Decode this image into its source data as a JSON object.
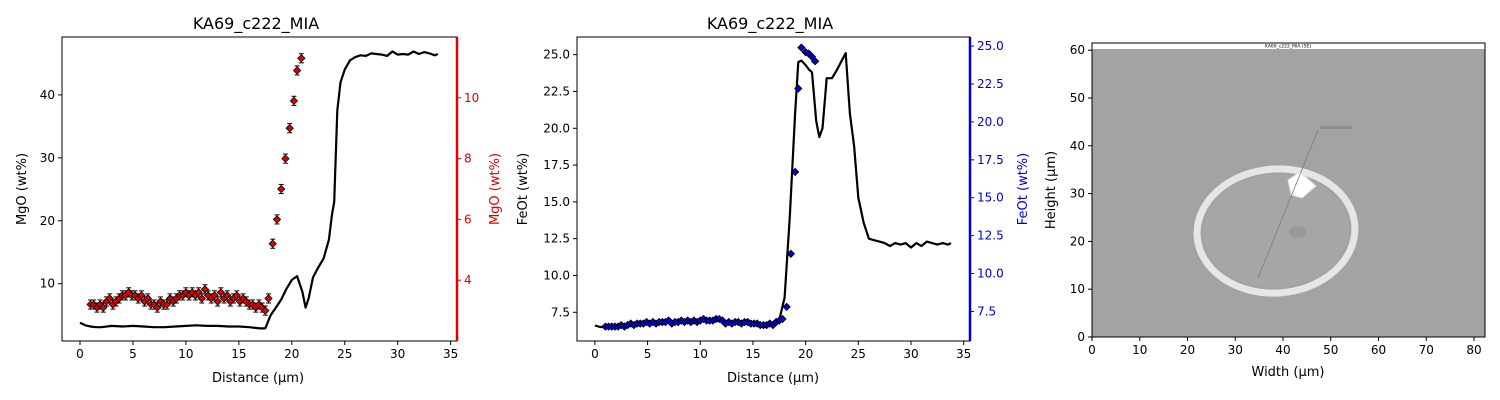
{
  "chart_data": [
    {
      "type": "line",
      "title": "KA69_c222_MIA",
      "xlabel": "Distance (µm)",
      "ylabel": "MgO (wt%)",
      "y2label": "MgO (wt%)",
      "xlim": [
        -1.7,
        35.6
      ],
      "ylim": [
        0.9,
        49.2
      ],
      "y2lim": [
        2.0,
        12.0
      ],
      "xticks": [
        "0",
        "5",
        "10",
        "15",
        "20",
        "25",
        "30",
        "35"
      ],
      "yticks": [
        "10",
        "20",
        "30",
        "40"
      ],
      "y2ticks": [
        "4",
        "6",
        "8",
        "10"
      ],
      "colors": {
        "line": "#000000",
        "points": "#e00000",
        "right_axis": "#e00000"
      },
      "series": [
        {
          "axis": "left",
          "style": "line",
          "x": [
            0,
            0.5,
            1,
            1.5,
            2,
            3,
            4,
            5,
            6,
            7,
            8,
            9,
            10,
            11,
            12,
            13,
            14,
            15,
            16,
            17,
            17.5,
            18,
            18.5,
            19,
            19.5,
            20,
            20.5,
            21,
            21.3,
            21.6,
            22,
            22.5,
            23,
            23.5,
            23.8,
            24,
            24.3,
            24.6,
            25,
            25.5,
            26,
            26.5,
            27,
            27.5,
            28,
            28.5,
            29,
            29.5,
            30,
            30.5,
            31,
            31.5,
            32,
            32.5,
            33,
            33.5,
            33.8
          ],
          "y": [
            3.8,
            3.4,
            3.2,
            3.1,
            3.1,
            3.3,
            3.2,
            3.3,
            3.2,
            3.1,
            3.1,
            3.2,
            3.3,
            3.4,
            3.3,
            3.3,
            3.2,
            3.2,
            3.1,
            2.9,
            2.9,
            5.0,
            6.2,
            7.5,
            9.2,
            10.6,
            11.2,
            8.7,
            6.2,
            7.7,
            11.0,
            12.6,
            14.0,
            17.0,
            21.0,
            23.0,
            37.5,
            42.0,
            44.0,
            45.5,
            46.0,
            46.3,
            46.2,
            46.6,
            46.5,
            46.4,
            46.2,
            46.9,
            46.4,
            46.5,
            46.4,
            46.9,
            46.5,
            46.8,
            46.6,
            46.3,
            46.5
          ]
        },
        {
          "axis": "right",
          "style": "points-errorbars",
          "x": [
            1,
            1.3,
            1.6,
            1.9,
            2.2,
            2.5,
            2.8,
            3.1,
            3.4,
            3.7,
            4,
            4.3,
            4.6,
            4.9,
            5.2,
            5.5,
            5.8,
            6.1,
            6.4,
            6.7,
            7,
            7.3,
            7.6,
            7.9,
            8.2,
            8.5,
            8.8,
            9.1,
            9.4,
            9.7,
            10,
            10.3,
            10.6,
            10.9,
            11.2,
            11.5,
            11.8,
            12.1,
            12.4,
            12.7,
            13,
            13.3,
            13.6,
            13.9,
            14.2,
            14.5,
            14.8,
            15.1,
            15.4,
            15.7,
            16,
            16.3,
            16.6,
            16.9,
            17.2,
            17.5,
            17.8,
            18.2,
            18.6,
            19.0,
            19.4,
            19.8,
            20.2,
            20.5,
            20.9
          ],
          "y": [
            3.2,
            3.2,
            3.1,
            3.2,
            3.1,
            3.3,
            3.4,
            3.2,
            3.3,
            3.4,
            3.5,
            3.5,
            3.6,
            3.5,
            3.5,
            3.4,
            3.5,
            3.3,
            3.4,
            3.2,
            3.2,
            3.1,
            3.3,
            3.2,
            3.2,
            3.4,
            3.3,
            3.4,
            3.5,
            3.5,
            3.6,
            3.5,
            3.6,
            3.5,
            3.6,
            3.4,
            3.7,
            3.5,
            3.4,
            3.5,
            3.3,
            3.6,
            3.4,
            3.5,
            3.3,
            3.4,
            3.5,
            3.3,
            3.4,
            3.3,
            3.2,
            3.2,
            3.1,
            3.2,
            3.1,
            3.0,
            3.4,
            5.2,
            6.0,
            7.0,
            8.0,
            9.0,
            9.9,
            10.9,
            11.3
          ],
          "yerr": 0.15
        }
      ]
    },
    {
      "type": "line",
      "title": "KA69_c222_MIA",
      "xlabel": "Distance (µm)",
      "ylabel": "FeOt (wt%)",
      "y2label": "FeOt (wt%)",
      "xlim": [
        -1.7,
        35.6
      ],
      "ylim": [
        5.55,
        26.2
      ],
      "y2lim": [
        5.55,
        25.6
      ],
      "xticks": [
        "0",
        "5",
        "10",
        "15",
        "20",
        "25",
        "30",
        "35"
      ],
      "yticks": [
        "7.5",
        "10.0",
        "12.5",
        "15.0",
        "17.5",
        "20.0",
        "22.5",
        "25.0"
      ],
      "y2ticks": [
        "7.5",
        "10.0",
        "12.5",
        "15.0",
        "17.5",
        "20.0",
        "22.5",
        "25.0"
      ],
      "colors": {
        "line": "#000000",
        "points": "#0000d0",
        "right_axis": "#0000d0"
      },
      "series": [
        {
          "axis": "left",
          "style": "line",
          "x": [
            0,
            0.5,
            1,
            2,
            3,
            4,
            5,
            6,
            7,
            8,
            9,
            10,
            11,
            12,
            13,
            14,
            15,
            16,
            17,
            17.5,
            18,
            18.5,
            19,
            19.3,
            19.6,
            20,
            20.3,
            20.6,
            21,
            21.3,
            21.6,
            22,
            22.5,
            23,
            23.5,
            23.8,
            24.2,
            24.6,
            25,
            25.5,
            26,
            26.5,
            27,
            27.5,
            28,
            28.5,
            29,
            29.5,
            30,
            30.5,
            31,
            31.5,
            32,
            32.5,
            33,
            33.5,
            33.8
          ],
          "y": [
            6.6,
            6.5,
            6.5,
            6.5,
            6.6,
            6.7,
            6.8,
            6.8,
            6.9,
            6.9,
            6.9,
            7.0,
            7.0,
            6.9,
            6.8,
            6.8,
            6.8,
            6.7,
            6.7,
            7.0,
            8.5,
            14.0,
            21.0,
            24.5,
            24.6,
            24.3,
            24.0,
            23.8,
            20.5,
            19.4,
            20.0,
            23.4,
            23.4,
            24.0,
            24.7,
            25.1,
            21.0,
            18.8,
            15.3,
            13.6,
            12.5,
            12.4,
            12.3,
            12.2,
            12.0,
            12.2,
            12.1,
            12.2,
            11.9,
            12.2,
            12.0,
            12.3,
            12.2,
            12.1,
            12.2,
            12.1,
            12.2
          ]
        },
        {
          "axis": "right",
          "style": "points",
          "x": [
            1,
            1.3,
            1.6,
            1.9,
            2.2,
            2.5,
            2.8,
            3.1,
            3.4,
            3.7,
            4,
            4.3,
            4.6,
            4.9,
            5.2,
            5.5,
            5.8,
            6.1,
            6.4,
            6.7,
            7,
            7.3,
            7.6,
            7.9,
            8.2,
            8.5,
            8.8,
            9.1,
            9.4,
            9.7,
            10,
            10.3,
            10.6,
            10.9,
            11.2,
            11.5,
            11.8,
            12.1,
            12.4,
            12.7,
            13,
            13.3,
            13.6,
            13.9,
            14.2,
            14.5,
            14.8,
            15.1,
            15.4,
            15.7,
            16,
            16.3,
            16.6,
            16.9,
            17.2,
            17.5,
            17.8,
            18.2,
            18.6,
            19.0,
            19.3,
            19.6,
            20.0,
            20.3,
            20.6,
            20.9
          ],
          "y": [
            6.5,
            6.5,
            6.5,
            6.5,
            6.5,
            6.6,
            6.5,
            6.6,
            6.7,
            6.6,
            6.7,
            6.7,
            6.7,
            6.8,
            6.7,
            6.8,
            6.7,
            6.8,
            6.8,
            6.8,
            6.9,
            6.7,
            6.8,
            6.8,
            6.9,
            6.8,
            6.9,
            6.8,
            6.9,
            6.8,
            6.9,
            7.0,
            6.9,
            6.9,
            6.9,
            7.0,
            7.0,
            6.9,
            6.7,
            6.8,
            6.7,
            6.8,
            6.8,
            6.7,
            6.8,
            6.8,
            6.7,
            6.7,
            6.7,
            6.6,
            6.6,
            6.6,
            6.7,
            6.6,
            6.8,
            6.9,
            7.0,
            7.8,
            11.3,
            16.7,
            22.2,
            24.9,
            24.6,
            24.5,
            24.3,
            24.0
          ],
          "marker": "diamond"
        }
      ]
    },
    {
      "type": "image",
      "title": "",
      "image_label": "KA69_c222_MIA (SE)",
      "xlabel": "Width (µm)",
      "ylabel": "Height (µm)",
      "xlim": [
        0,
        82.3
      ],
      "ylim": [
        0,
        61.5
      ],
      "xticks": [
        "0",
        "10",
        "20",
        "30",
        "40",
        "50",
        "60",
        "70",
        "80"
      ],
      "yticks": [
        "0",
        "10",
        "20",
        "30",
        "40",
        "50",
        "60"
      ],
      "colors": {
        "background": "#a3a3a3",
        "rim": "#e3e3e3",
        "inclusion": "#9c9c9c",
        "bubble": "#ffffff"
      }
    }
  ]
}
